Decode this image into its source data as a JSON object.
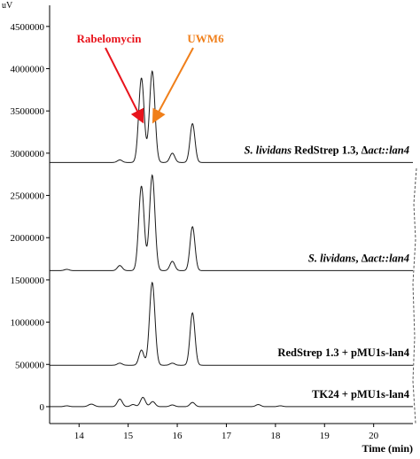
{
  "chart_data": {
    "type": "line",
    "y_unit": "uV",
    "xlabel": "Time (min)",
    "xlim": [
      13.4,
      20.8
    ],
    "ylim": [
      -200000,
      4750000
    ],
    "x_ticks": [
      14,
      15,
      16,
      17,
      18,
      19,
      20
    ],
    "x_tick_labels": [
      "14",
      "15",
      "16",
      "17",
      "18",
      "19",
      "20"
    ],
    "y_ticks": [
      0,
      500000,
      1000000,
      1500000,
      2000000,
      2500000,
      3000000,
      3500000,
      4000000,
      4500000
    ],
    "y_tick_labels": [
      "0",
      "500000",
      "1000000",
      "1500000",
      "2000000",
      "2500000",
      "3000000",
      "3500000",
      "4000000",
      "4500000"
    ],
    "grid": false,
    "series": [
      {
        "label_parts": [
          {
            "text": "S. lividans",
            "italic": true
          },
          {
            "text": " RedStrep 1.3, Δ",
            "italic": false
          },
          {
            "text": "act::lan4",
            "italic": true
          }
        ],
        "baseline": 2890000,
        "peaks": [
          {
            "x": 14.83,
            "height": 30000,
            "width": 0.05
          },
          {
            "x": 15.27,
            "height": 1000000,
            "width": 0.055
          },
          {
            "x": 15.49,
            "height": 1080000,
            "width": 0.055
          },
          {
            "x": 15.9,
            "height": 110000,
            "width": 0.05
          },
          {
            "x": 16.31,
            "height": 460000,
            "width": 0.05
          }
        ]
      },
      {
        "label_parts": [
          {
            "text": "S. lividans",
            "italic": true
          },
          {
            "text": ", Δ",
            "italic": false
          },
          {
            "text": "act::lan4",
            "italic": true
          }
        ],
        "baseline": 1610000,
        "peaks": [
          {
            "x": 13.75,
            "height": 15000,
            "width": 0.05
          },
          {
            "x": 14.83,
            "height": 60000,
            "width": 0.05
          },
          {
            "x": 15.27,
            "height": 1000000,
            "width": 0.055
          },
          {
            "x": 15.49,
            "height": 1130000,
            "width": 0.055
          },
          {
            "x": 15.9,
            "height": 110000,
            "width": 0.05
          },
          {
            "x": 16.31,
            "height": 520000,
            "width": 0.05
          }
        ]
      },
      {
        "label_parts": [
          {
            "text": "RedStrep 1.3 + pMU1s-lan4",
            "italic": false
          }
        ],
        "baseline": 490000,
        "peaks": [
          {
            "x": 14.83,
            "height": 25000,
            "width": 0.05
          },
          {
            "x": 15.27,
            "height": 180000,
            "width": 0.05
          },
          {
            "x": 15.49,
            "height": 980000,
            "width": 0.055
          },
          {
            "x": 15.9,
            "height": 25000,
            "width": 0.05
          },
          {
            "x": 16.31,
            "height": 620000,
            "width": 0.05
          }
        ]
      },
      {
        "label_parts": [
          {
            "text": "TK24 + pMU1s-lan4",
            "italic": false
          }
        ],
        "baseline": 0,
        "peaks": [
          {
            "x": 13.75,
            "height": 10000,
            "width": 0.05
          },
          {
            "x": 14.25,
            "height": 30000,
            "width": 0.06
          },
          {
            "x": 14.83,
            "height": 90000,
            "width": 0.05
          },
          {
            "x": 15.1,
            "height": 25000,
            "width": 0.05
          },
          {
            "x": 15.3,
            "height": 110000,
            "width": 0.05
          },
          {
            "x": 15.5,
            "height": 60000,
            "width": 0.05
          },
          {
            "x": 15.9,
            "height": 20000,
            "width": 0.05
          },
          {
            "x": 16.31,
            "height": 50000,
            "width": 0.05
          },
          {
            "x": 17.65,
            "height": 25000,
            "width": 0.05
          },
          {
            "x": 18.1,
            "height": 10000,
            "width": 0.05
          }
        ]
      }
    ],
    "annotations": [
      {
        "text": "Rabelomycin",
        "color": "#e8141c",
        "points_to_x": 15.29,
        "points_to_y": 3380000
      },
      {
        "text": "UWM6",
        "color": "#f07f1a",
        "points_to_x": 15.52,
        "points_to_y": 3380000
      }
    ]
  }
}
